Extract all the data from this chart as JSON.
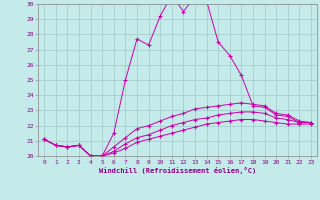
{
  "xlabel": "Windchill (Refroidissement éolien,°C)",
  "xlim": [
    -0.5,
    23.5
  ],
  "ylim": [
    20,
    30
  ],
  "yticks": [
    20,
    21,
    22,
    23,
    24,
    25,
    26,
    27,
    28,
    29,
    30
  ],
  "xticks": [
    0,
    1,
    2,
    3,
    4,
    5,
    6,
    7,
    8,
    9,
    10,
    11,
    12,
    13,
    14,
    15,
    16,
    17,
    18,
    19,
    20,
    21,
    22,
    23
  ],
  "background_color": "#c5eaea",
  "grid_color": "#a0c8c8",
  "line_color": "#cc00aa",
  "marker": "+",
  "series": [
    [
      21.1,
      20.7,
      20.6,
      20.7,
      20.0,
      20.0,
      21.5,
      25.0,
      27.7,
      27.3,
      29.2,
      30.6,
      29.5,
      30.5,
      30.2,
      27.5,
      26.6,
      25.3,
      23.3,
      23.2,
      22.7,
      22.6,
      22.2,
      22.2
    ],
    [
      21.1,
      20.7,
      20.6,
      20.7,
      20.0,
      20.0,
      20.6,
      21.2,
      21.8,
      22.0,
      22.3,
      22.6,
      22.8,
      23.1,
      23.2,
      23.3,
      23.4,
      23.5,
      23.4,
      23.3,
      22.8,
      22.7,
      22.3,
      22.2
    ],
    [
      21.1,
      20.7,
      20.6,
      20.7,
      20.0,
      20.0,
      20.3,
      20.8,
      21.2,
      21.4,
      21.7,
      22.0,
      22.2,
      22.4,
      22.5,
      22.7,
      22.8,
      22.9,
      22.9,
      22.8,
      22.5,
      22.4,
      22.2,
      22.2
    ],
    [
      21.1,
      20.7,
      20.6,
      20.7,
      20.0,
      20.0,
      20.2,
      20.5,
      20.9,
      21.1,
      21.3,
      21.5,
      21.7,
      21.9,
      22.1,
      22.2,
      22.3,
      22.4,
      22.4,
      22.3,
      22.2,
      22.1,
      22.1,
      22.1
    ]
  ]
}
